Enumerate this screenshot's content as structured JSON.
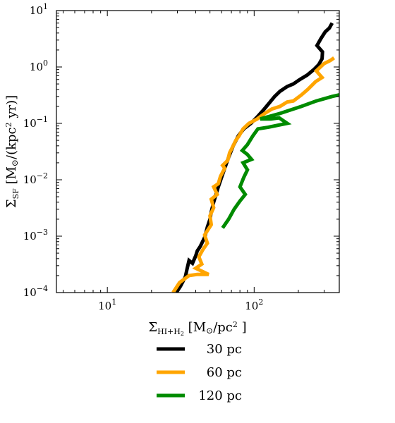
{
  "chart_data": {
    "type": "line",
    "title": "",
    "xlabel": "Σ_HI+H2 [M⊙/pc²]",
    "ylabel": "Σ_SF [M⊙/(kpc² yr)]",
    "xscale": "log",
    "yscale": "log",
    "xlim": [
      4.5,
      380
    ],
    "ylim": [
      0.0001,
      10
    ],
    "grid": false,
    "legend_position": "below-plot",
    "x_tick_labels": [
      {
        "value": 10,
        "base": "10",
        "exp": "1"
      },
      {
        "value": 100,
        "base": "10",
        "exp": "2"
      }
    ],
    "y_tick_labels": [
      {
        "value": 0.0001,
        "base": "10",
        "exp": "−4"
      },
      {
        "value": 0.001,
        "base": "10",
        "exp": "−3"
      },
      {
        "value": 0.01,
        "base": "10",
        "exp": "−2"
      },
      {
        "value": 0.1,
        "base": "10",
        "exp": "−1"
      },
      {
        "value": 1,
        "base": "10",
        "exp": "0"
      },
      {
        "value": 10,
        "base": "10",
        "exp": "1"
      }
    ],
    "series": [
      {
        "name": "30 pc",
        "color": "#000000",
        "points": [
          [
            29.5,
            0.0001
          ],
          [
            31.5,
            0.00013
          ],
          [
            34,
            0.00019
          ],
          [
            35,
            0.00027
          ],
          [
            36,
            0.00037
          ],
          [
            38,
            0.00033
          ],
          [
            40,
            0.00045
          ],
          [
            41,
            0.00055
          ],
          [
            43,
            0.00066
          ],
          [
            46,
            0.00095
          ],
          [
            48,
            0.00145
          ],
          [
            50,
            0.002
          ],
          [
            51,
            0.0027
          ],
          [
            53,
            0.004
          ],
          [
            55,
            0.0055
          ],
          [
            57,
            0.0075
          ],
          [
            60,
            0.011
          ],
          [
            63,
            0.016
          ],
          [
            67,
            0.025
          ],
          [
            72,
            0.04
          ],
          [
            78,
            0.06
          ],
          [
            85,
            0.08
          ],
          [
            95,
            0.1
          ],
          [
            105,
            0.13
          ],
          [
            115,
            0.17
          ],
          [
            125,
            0.22
          ],
          [
            138,
            0.3
          ],
          [
            150,
            0.37
          ],
          [
            168,
            0.45
          ],
          [
            185,
            0.5
          ],
          [
            205,
            0.6
          ],
          [
            230,
            0.72
          ],
          [
            255,
            0.9
          ],
          [
            275,
            1.1
          ],
          [
            290,
            1.4
          ],
          [
            292,
            1.85
          ],
          [
            268,
            2.4
          ],
          [
            285,
            3.2
          ],
          [
            305,
            4.2
          ],
          [
            325,
            4.9
          ],
          [
            340,
            6.0
          ]
        ]
      },
      {
        "name": "60 pc",
        "color": "#FFA500",
        "points": [
          [
            28,
            0.0001
          ],
          [
            31,
            0.00015
          ],
          [
            36,
            0.0002
          ],
          [
            41,
            0.00021
          ],
          [
            49,
            0.00021
          ],
          [
            40,
            0.00027
          ],
          [
            44,
            0.00032
          ],
          [
            42,
            0.00043
          ],
          [
            45,
            0.00059
          ],
          [
            48,
            0.00075
          ],
          [
            46,
            0.00105
          ],
          [
            51,
            0.0016
          ],
          [
            50,
            0.0023
          ],
          [
            53,
            0.0032
          ],
          [
            51,
            0.0045
          ],
          [
            56,
            0.0055
          ],
          [
            53,
            0.0075
          ],
          [
            57,
            0.0085
          ],
          [
            59,
            0.0115
          ],
          [
            63,
            0.016
          ],
          [
            61,
            0.018
          ],
          [
            66,
            0.022
          ],
          [
            68,
            0.03
          ],
          [
            72,
            0.04
          ],
          [
            75,
            0.05
          ],
          [
            79,
            0.06
          ],
          [
            84,
            0.08
          ],
          [
            92,
            0.1
          ],
          [
            105,
            0.12
          ],
          [
            118,
            0.15
          ],
          [
            132,
            0.18
          ],
          [
            150,
            0.2
          ],
          [
            168,
            0.24
          ],
          [
            185,
            0.25
          ],
          [
            210,
            0.32
          ],
          [
            232,
            0.4
          ],
          [
            262,
            0.55
          ],
          [
            290,
            0.65
          ],
          [
            265,
            0.85
          ],
          [
            300,
            1.15
          ],
          [
            330,
            1.3
          ],
          [
            350,
            1.45
          ]
        ]
      },
      {
        "name": "120 pc",
        "color": "#008B00",
        "points": [
          [
            61,
            0.0014
          ],
          [
            67,
            0.002
          ],
          [
            73,
            0.003
          ],
          [
            80,
            0.0042
          ],
          [
            87,
            0.0055
          ],
          [
            80,
            0.0075
          ],
          [
            85,
            0.011
          ],
          [
            90,
            0.015
          ],
          [
            84,
            0.02
          ],
          [
            96,
            0.023
          ],
          [
            90,
            0.028
          ],
          [
            83,
            0.033
          ],
          [
            90,
            0.042
          ],
          [
            98,
            0.06
          ],
          [
            106,
            0.08
          ],
          [
            124,
            0.085
          ],
          [
            168,
            0.1
          ],
          [
            148,
            0.125
          ],
          [
            130,
            0.12
          ],
          [
            110,
            0.12
          ],
          [
            150,
            0.15
          ],
          [
            210,
            0.2
          ],
          [
            265,
            0.25
          ],
          [
            340,
            0.3
          ],
          [
            380,
            0.32
          ]
        ]
      }
    ]
  }
}
